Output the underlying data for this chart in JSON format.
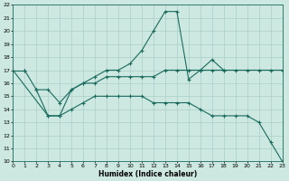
{
  "xlabel": "Humidex (Indice chaleur)",
  "bg_color": "#cce8e0",
  "line_color": "#1a6b5e",
  "grid_color": "#aacfc8",
  "xlim": [
    0,
    23
  ],
  "ylim": [
    10,
    22
  ],
  "xticks": [
    0,
    1,
    2,
    3,
    4,
    5,
    6,
    7,
    8,
    9,
    10,
    11,
    12,
    13,
    14,
    15,
    16,
    17,
    18,
    19,
    20,
    21,
    22,
    23
  ],
  "yticks": [
    10,
    11,
    12,
    13,
    14,
    15,
    16,
    17,
    18,
    19,
    20,
    21,
    22
  ],
  "lines": [
    {
      "x": [
        0,
        1
      ],
      "y": [
        17,
        17
      ]
    },
    {
      "x": [
        1,
        2,
        3,
        4,
        5,
        6,
        7,
        8,
        9,
        10,
        11,
        12,
        13,
        14,
        15,
        16,
        17,
        18
      ],
      "y": [
        17,
        15.5,
        13.5,
        13.5,
        15.5,
        16.0,
        16.5,
        17.0,
        17.0,
        17.5,
        18.5,
        20.0,
        21.5,
        21.5,
        16.3,
        17.0,
        17.8,
        17.0
      ]
    },
    {
      "x": [
        2,
        3,
        4,
        5,
        6,
        7,
        8,
        9,
        10,
        11,
        12,
        13,
        14,
        15,
        16,
        17,
        18,
        19,
        20,
        21,
        22,
        23
      ],
      "y": [
        15.5,
        15.5,
        14.5,
        15.5,
        16.0,
        16.0,
        16.5,
        16.5,
        16.5,
        16.5,
        16.5,
        17.0,
        17.0,
        17.0,
        17.0,
        17.0,
        17.0,
        17.0,
        17.0,
        17.0,
        17.0,
        17.0
      ]
    },
    {
      "x": [
        0,
        3,
        4,
        5,
        6,
        7,
        8,
        9,
        10,
        11,
        12,
        13,
        14,
        15,
        16,
        17,
        18,
        19,
        20,
        21,
        22,
        23
      ],
      "y": [
        17,
        13.5,
        13.5,
        14.0,
        14.5,
        15.0,
        15.0,
        15.0,
        15.0,
        15.0,
        14.5,
        14.5,
        14.5,
        14.5,
        14.0,
        13.5,
        13.5,
        13.5,
        13.5,
        13.0,
        11.5,
        10.0
      ]
    }
  ]
}
